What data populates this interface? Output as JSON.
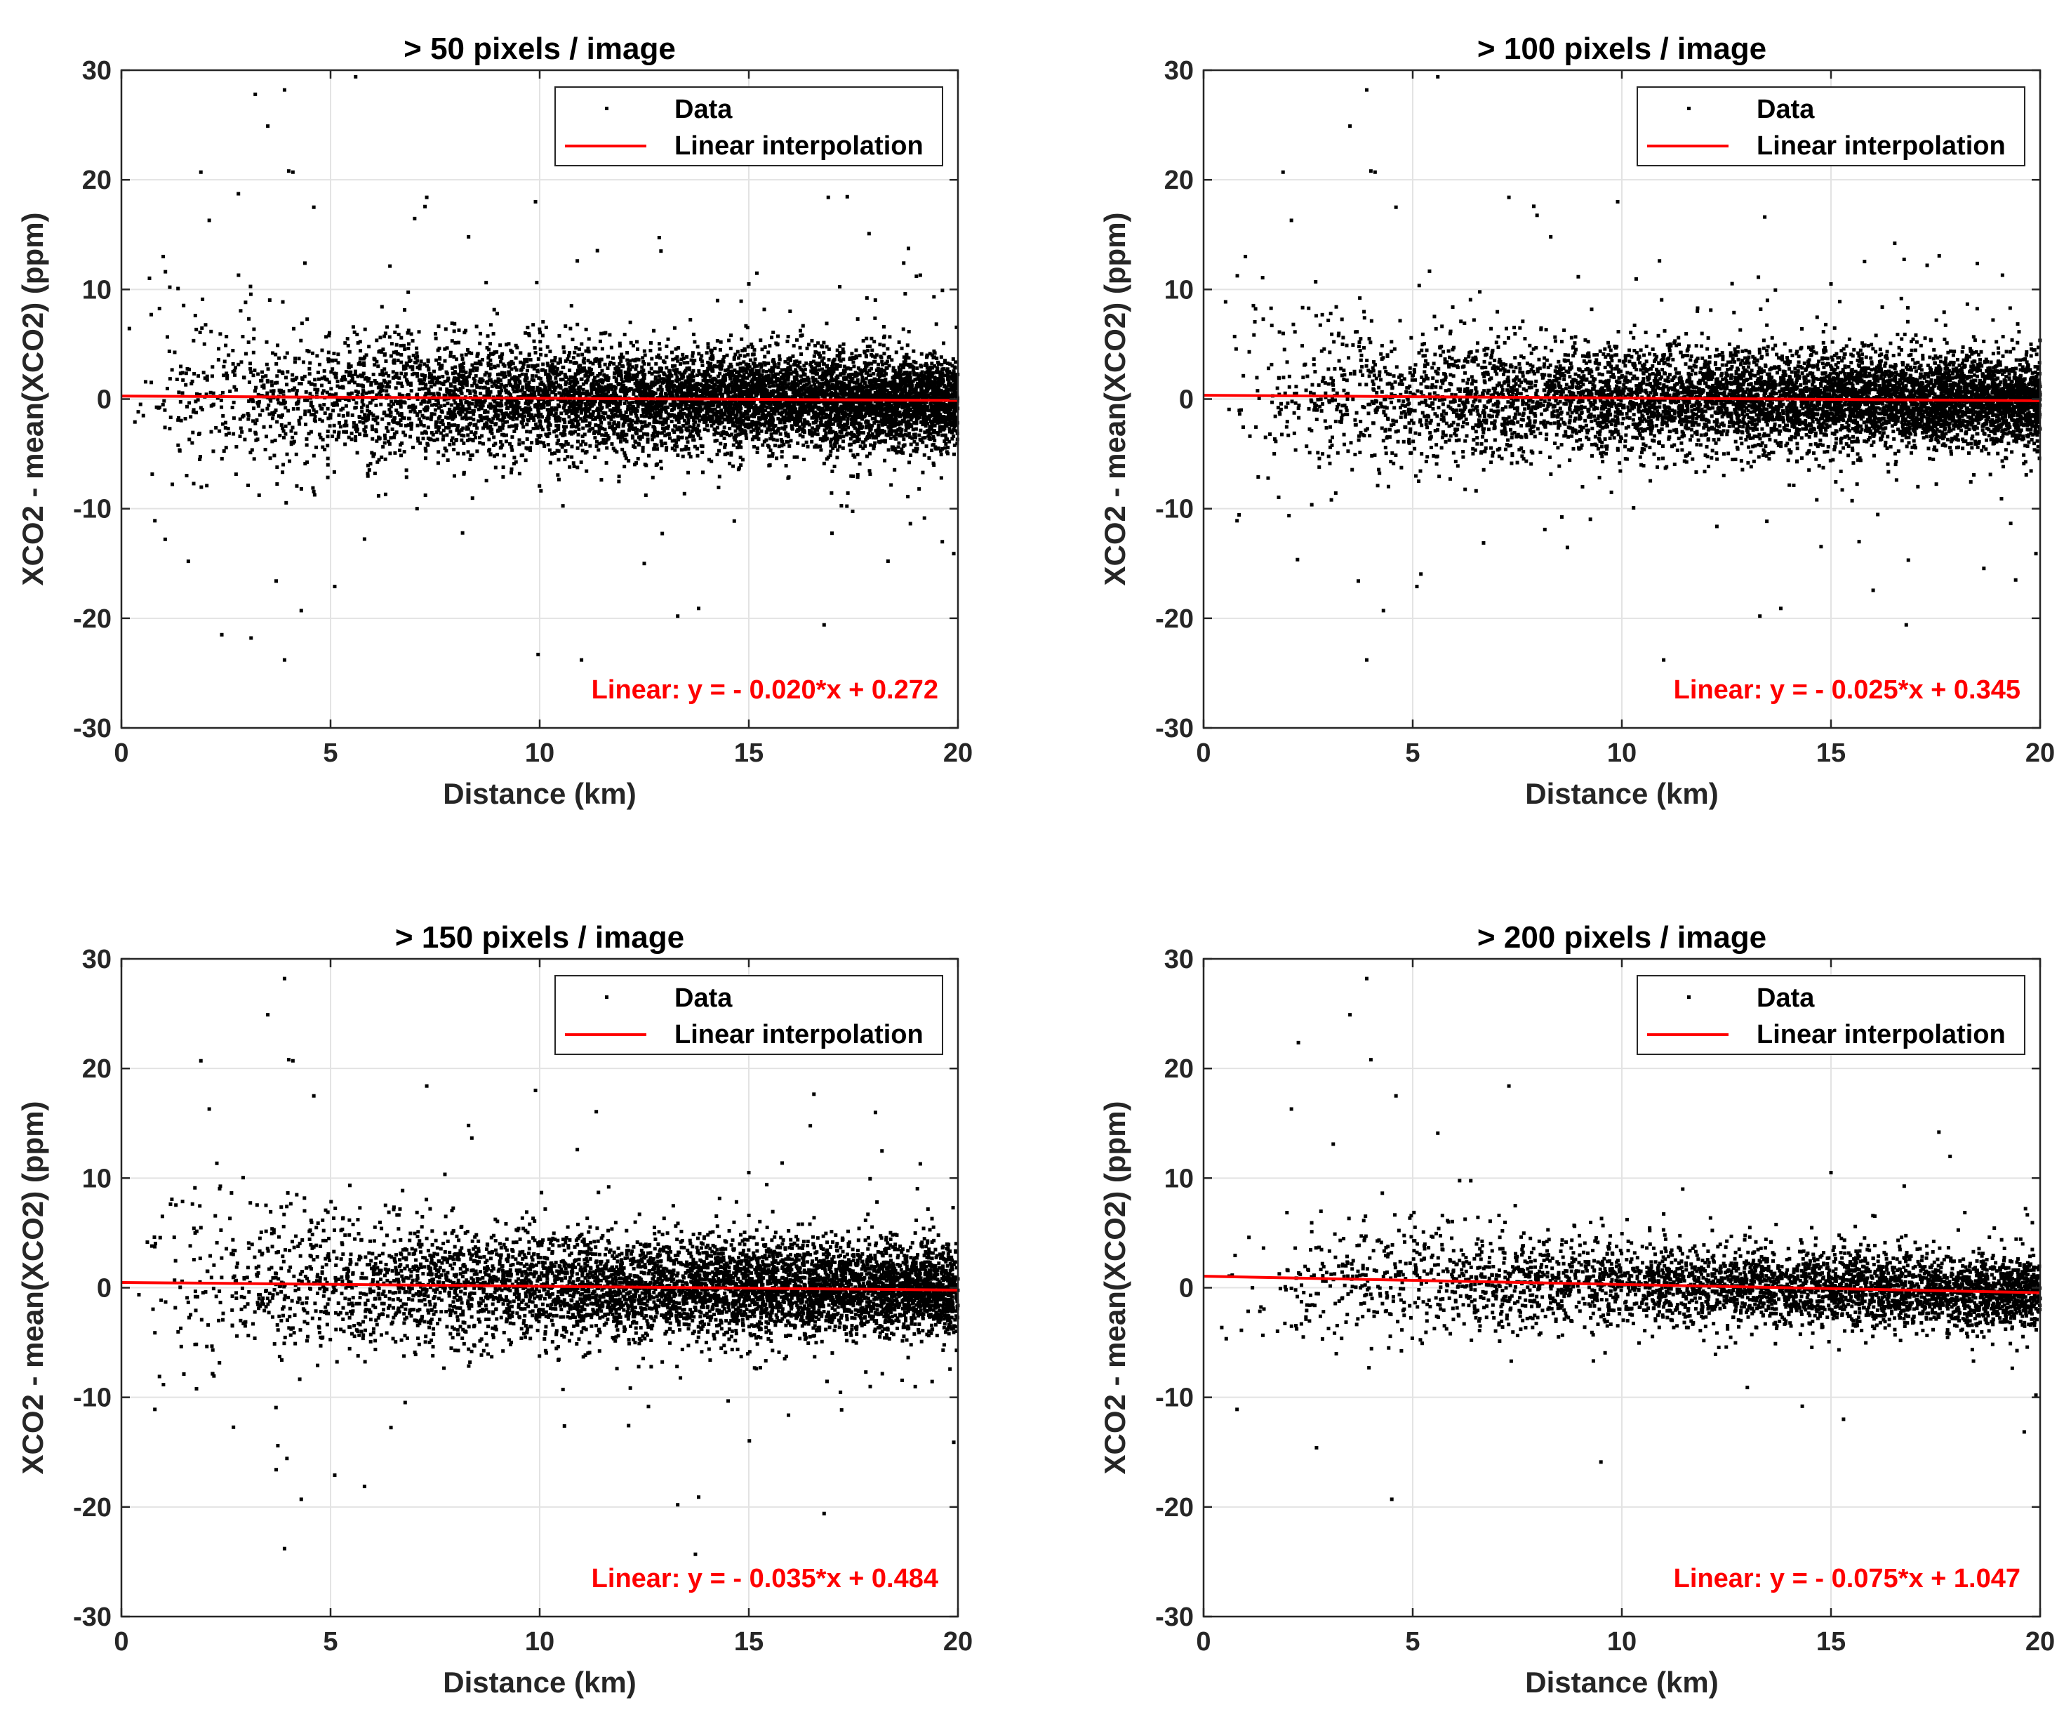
{
  "chart_data": [
    {
      "type": "scatter",
      "title": "> 50 pixels / image",
      "xlabel": "Distance (km)",
      "ylabel": "XCO2 - mean(XCO2) (ppm)",
      "xlim": [
        0,
        20
      ],
      "ylim": [
        -30,
        30
      ],
      "xticks": [
        "0",
        "5",
        "10",
        "15",
        "20"
      ],
      "yticks": [
        "30",
        "20",
        "10",
        "0",
        "-10",
        "-20",
        "-30"
      ],
      "grid": true,
      "legend_position": "top-right",
      "legend": [
        "Data",
        "Linear interpolation"
      ],
      "fit": {
        "slope": -0.02,
        "intercept": 0.272,
        "label": "Linear:  y = - 0.020*x + 0.272"
      },
      "series": [
        {
          "name": "Data",
          "marker": "dot",
          "color": "#000000",
          "points_shown": [
            [
              3.2,
              27.8
            ],
            [
              3.9,
              28.2
            ],
            [
              5.6,
              29.4
            ],
            [
              3.5,
              24.9
            ],
            [
              1.9,
              20.7
            ],
            [
              4.0,
              20.8
            ],
            [
              4.1,
              20.7
            ],
            [
              9.9,
              18.0
            ],
            [
              16.9,
              18.4
            ],
            [
              7.3,
              18.4
            ],
            [
              4.6,
              17.5
            ],
            [
              2.1,
              16.3
            ],
            [
              8.3,
              14.8
            ],
            [
              10.9,
              12.6
            ],
            [
              1.0,
              13.0
            ],
            [
              2.8,
              11.3
            ],
            [
              12.9,
              13.5
            ],
            [
              15.0,
              10.5
            ],
            [
              19.1,
              11.3
            ],
            [
              0.8,
              -11.1
            ],
            [
              2.4,
              -21.5
            ],
            [
              3.1,
              -21.8
            ],
            [
              3.9,
              -23.8
            ],
            [
              11.0,
              -23.8
            ],
            [
              13.3,
              -19.8
            ],
            [
              13.8,
              -19.1
            ],
            [
              16.8,
              -20.6
            ],
            [
              4.3,
              -19.3
            ],
            [
              3.7,
              -16.6
            ],
            [
              5.1,
              -17.1
            ],
            [
              1.6,
              -14.8
            ],
            [
              12.5,
              -15.0
            ],
            [
              19.9,
              -14.1
            ]
          ],
          "trend": "dense band around 0 widening toward short distance"
        }
      ]
    },
    {
      "type": "scatter",
      "title": "> 100 pixels / image",
      "xlabel": "Distance (km)",
      "ylabel": "XCO2 - mean(XCO2) (ppm)",
      "xlim": [
        0,
        20
      ],
      "ylim": [
        -30,
        30
      ],
      "xticks": [
        "0",
        "5",
        "10",
        "15",
        "20"
      ],
      "yticks": [
        "30",
        "20",
        "10",
        "0",
        "-10",
        "-20",
        "-30"
      ],
      "grid": true,
      "legend_position": "top-right",
      "legend": [
        "Data",
        "Linear interpolation"
      ],
      "fit": {
        "slope": -0.025,
        "intercept": 0.345,
        "label": "Linear:  y = - 0.025*x + 0.345"
      },
      "series": [
        {
          "name": "Data",
          "marker": "dot",
          "color": "#000000",
          "points_shown": [
            [
              3.9,
              28.2
            ],
            [
              5.6,
              29.4
            ],
            [
              3.5,
              24.9
            ],
            [
              1.9,
              20.7
            ],
            [
              4.0,
              20.8
            ],
            [
              4.1,
              20.7
            ],
            [
              9.9,
              18.0
            ],
            [
              7.3,
              18.4
            ],
            [
              4.6,
              17.5
            ],
            [
              2.1,
              16.3
            ],
            [
              8.3,
              14.8
            ],
            [
              10.9,
              12.6
            ],
            [
              1.0,
              13.0
            ],
            [
              15.0,
              10.5
            ],
            [
              19.1,
              11.3
            ],
            [
              0.8,
              -11.1
            ],
            [
              3.9,
              -23.8
            ],
            [
              11.0,
              -23.8
            ],
            [
              13.3,
              -19.8
            ],
            [
              13.8,
              -19.1
            ],
            [
              16.8,
              -20.6
            ],
            [
              4.3,
              -19.3
            ],
            [
              3.7,
              -16.6
            ],
            [
              5.1,
              -17.1
            ],
            [
              19.9,
              -14.1
            ]
          ],
          "trend": "dense band around 0 widening toward short distance"
        }
      ]
    },
    {
      "type": "scatter",
      "title": "> 150 pixels / image",
      "xlabel": "Distance (km)",
      "ylabel": "XCO2 - mean(XCO2) (ppm)",
      "xlim": [
        0,
        20
      ],
      "ylim": [
        -30,
        30
      ],
      "xticks": [
        "0",
        "5",
        "10",
        "15",
        "20"
      ],
      "yticks": [
        "30",
        "20",
        "10",
        "0",
        "-10",
        "-20",
        "-30"
      ],
      "grid": true,
      "legend_position": "top-right",
      "legend": [
        "Data",
        "Linear interpolation"
      ],
      "fit": {
        "slope": -0.035,
        "intercept": 0.484,
        "label": "Linear:  y = - 0.035*x + 0.484"
      },
      "series": [
        {
          "name": "Data",
          "marker": "dot",
          "color": "#000000",
          "points_shown": [
            [
              3.9,
              28.2
            ],
            [
              3.5,
              24.9
            ],
            [
              1.9,
              20.7
            ],
            [
              4.0,
              20.8
            ],
            [
              4.1,
              20.7
            ],
            [
              9.9,
              18.0
            ],
            [
              7.3,
              18.4
            ],
            [
              4.6,
              17.5
            ],
            [
              2.1,
              16.3
            ],
            [
              8.3,
              14.8
            ],
            [
              10.9,
              12.6
            ],
            [
              15.0,
              10.5
            ],
            [
              19.1,
              11.3
            ],
            [
              0.8,
              -11.1
            ],
            [
              3.9,
              -23.8
            ],
            [
              13.3,
              -19.8
            ],
            [
              13.8,
              -19.1
            ],
            [
              16.8,
              -20.6
            ],
            [
              4.3,
              -19.3
            ],
            [
              3.7,
              -16.6
            ],
            [
              5.1,
              -17.1
            ],
            [
              19.9,
              -14.1
            ]
          ],
          "trend": "dense band around 0 widening toward short distance"
        }
      ]
    },
    {
      "type": "scatter",
      "title": "> 200 pixels / image",
      "xlabel": "Distance (km)",
      "ylabel": "XCO2 - mean(XCO2) (ppm)",
      "xlim": [
        0,
        20
      ],
      "ylim": [
        -30,
        30
      ],
      "xticks": [
        "0",
        "5",
        "10",
        "15",
        "20"
      ],
      "yticks": [
        "30",
        "20",
        "10",
        "0",
        "-10",
        "-20",
        "-30"
      ],
      "grid": true,
      "legend_position": "top-right",
      "legend": [
        "Data",
        "Linear interpolation"
      ],
      "fit": {
        "slope": -0.075,
        "intercept": 1.047,
        "label": "Linear:  y = - 0.075*x + 1.047"
      },
      "series": [
        {
          "name": "Data",
          "marker": "dot",
          "color": "#000000",
          "points_shown": [
            [
              3.9,
              28.2
            ],
            [
              3.5,
              24.9
            ],
            [
              4.0,
              20.8
            ],
            [
              7.3,
              18.4
            ],
            [
              4.6,
              17.5
            ],
            [
              2.1,
              16.3
            ],
            [
              5.6,
              14.1
            ],
            [
              3.1,
              13.1
            ],
            [
              15.0,
              10.5
            ],
            [
              0.8,
              -11.1
            ],
            [
              2.7,
              -14.6
            ],
            [
              4.5,
              -19.3
            ],
            [
              9.5,
              -15.9
            ],
            [
              13.0,
              -9.1
            ],
            [
              15.3,
              -12.0
            ],
            [
              19.9,
              -9.8
            ]
          ],
          "trend": "dense band around 0 with fewer points, widening toward short distance"
        }
      ]
    }
  ]
}
